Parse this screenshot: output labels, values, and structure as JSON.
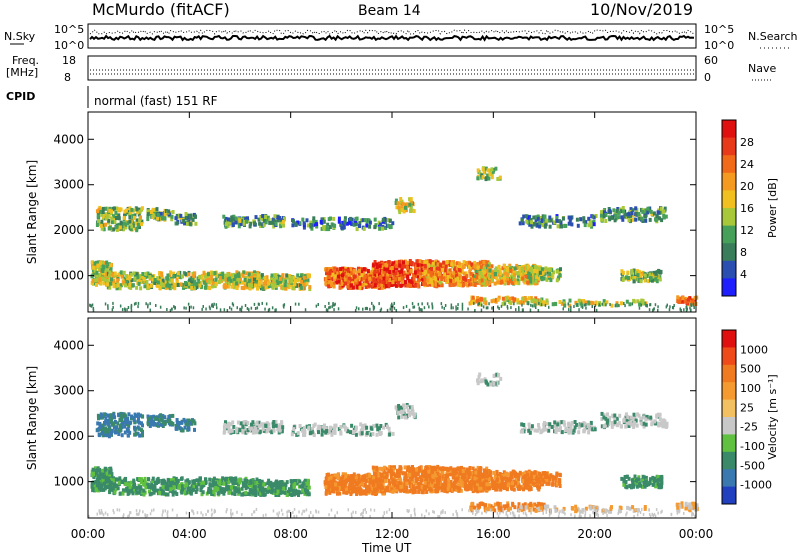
{
  "header": {
    "station": "McMurdo (fitACF)",
    "beam": "Beam 14",
    "date": "10/Nov/2019"
  },
  "top_panels": {
    "nsky_label": "N.Sky",
    "nsearch_label": "N.Search",
    "nsky_ticks": [
      "10^5",
      "10^0"
    ],
    "nsearch_ticks": [
      "10^5",
      "10^0"
    ],
    "freq_label_1": "Freq.",
    "freq_label_2": "[MHz]",
    "freq_ticks": [
      "18",
      "8"
    ],
    "nave_label": "Nave",
    "nave_ticks": [
      "60",
      "0"
    ],
    "cpid_label": "CPID",
    "cpid_text": "normal (fast) 151 RF"
  },
  "chart_data": [
    {
      "type": "heatmap",
      "name": "power",
      "ylabel": "Slant Range [km]",
      "xlabel": "Time UT",
      "yticks": [
        1000,
        2000,
        3000,
        4000
      ],
      "ylim": [
        200,
        4600
      ],
      "xlim": [
        0,
        24
      ],
      "xticks": [
        "00:00",
        "04:00",
        "08:00",
        "12:00",
        "16:00",
        "20:00",
        "00:00"
      ],
      "colorbar_label": "Power [dB]",
      "colorbar_ticks": [
        "4",
        "8",
        "12",
        "16",
        "20",
        "24",
        "28"
      ],
      "colorbar_colors": [
        "#1e1eff",
        "#2a4fb0",
        "#3a7d5a",
        "#47a05a",
        "#a8c83a",
        "#f0c020",
        "#f59a20",
        "#f06a1a",
        "#e83a1a",
        "#e01010"
      ]
    },
    {
      "type": "heatmap",
      "name": "velocity",
      "ylabel": "Slant Range [km]",
      "xlabel": "Time UT",
      "yticks": [
        1000,
        2000,
        3000,
        4000
      ],
      "ylim": [
        200,
        4600
      ],
      "xlim": [
        0,
        24
      ],
      "xticks": [
        "00:00",
        "04:00",
        "08:00",
        "12:00",
        "16:00",
        "20:00",
        "00:00"
      ],
      "colorbar_label": "Velocity [m s⁻¹]",
      "colorbar_ticks": [
        "1000",
        "500",
        "100",
        "25",
        "-25",
        "-100",
        "-500",
        "-1000"
      ],
      "colorbar_colors": [
        "#2040c0",
        "#3a78b0",
        "#3a8a6a",
        "#60c040",
        "#c8c8c8",
        "#f2c060",
        "#f59a30",
        "#f07a20",
        "#ee4a1a",
        "#e01010"
      ]
    }
  ],
  "xaxis_title": "Time UT"
}
